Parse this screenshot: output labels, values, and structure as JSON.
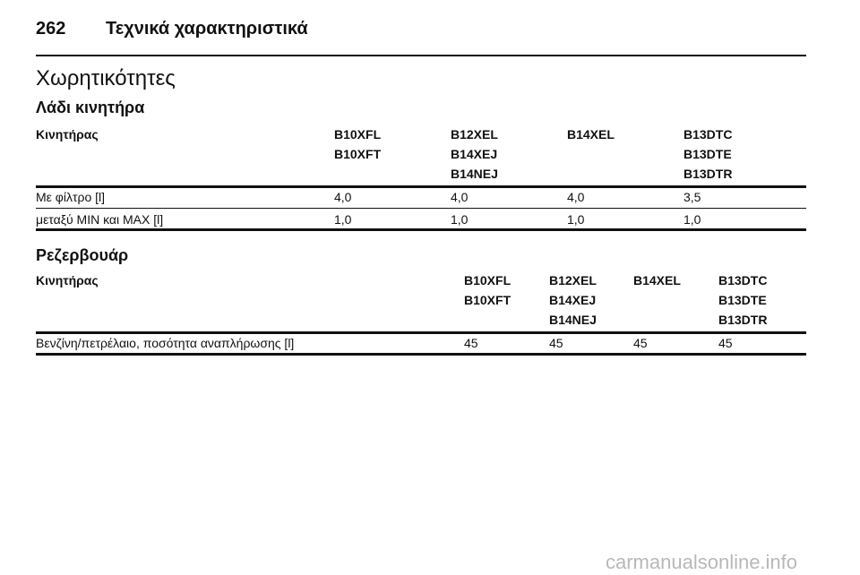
{
  "header": {
    "page_number": "262",
    "title": "Τεχνικά χαρακτηριστικά"
  },
  "section_title": "Χωρητικότητες",
  "tables": [
    {
      "title": "Λάδι κινητήρα",
      "header": [
        [
          "Κινητήρας"
        ],
        [
          "B10XFL",
          "B10XFT"
        ],
        [
          "B12XEL",
          "B14XEJ",
          "B14NEJ"
        ],
        [
          "B14XEL"
        ],
        [
          "B13DTC",
          "B13DTE",
          "B13DTR"
        ]
      ],
      "rows": [
        [
          "Με φίλτρο [l]",
          "4,0",
          "4,0",
          "4,0",
          "3,5"
        ],
        [
          "μεταξύ MIN και MAX [l]",
          "1,0",
          "1,0",
          "1,0",
          "1,0"
        ]
      ]
    },
    {
      "title": "Ρεζερβουάρ",
      "header": [
        [
          "Κινητήρας"
        ],
        [
          "B10XFL",
          "B10XFT"
        ],
        [
          "B12XEL",
          "B14XEJ",
          "B14NEJ"
        ],
        [
          "B14XEL"
        ],
        [
          "B13DTC",
          "B13DTE",
          "B13DTR"
        ]
      ],
      "rows": [
        [
          "Βενζίνη/πετρέλαιο, ποσότητα αναπλήρωσης [l]",
          "45",
          "45",
          "45",
          "45"
        ]
      ]
    }
  ],
  "watermark": "carmanualsonline.info"
}
